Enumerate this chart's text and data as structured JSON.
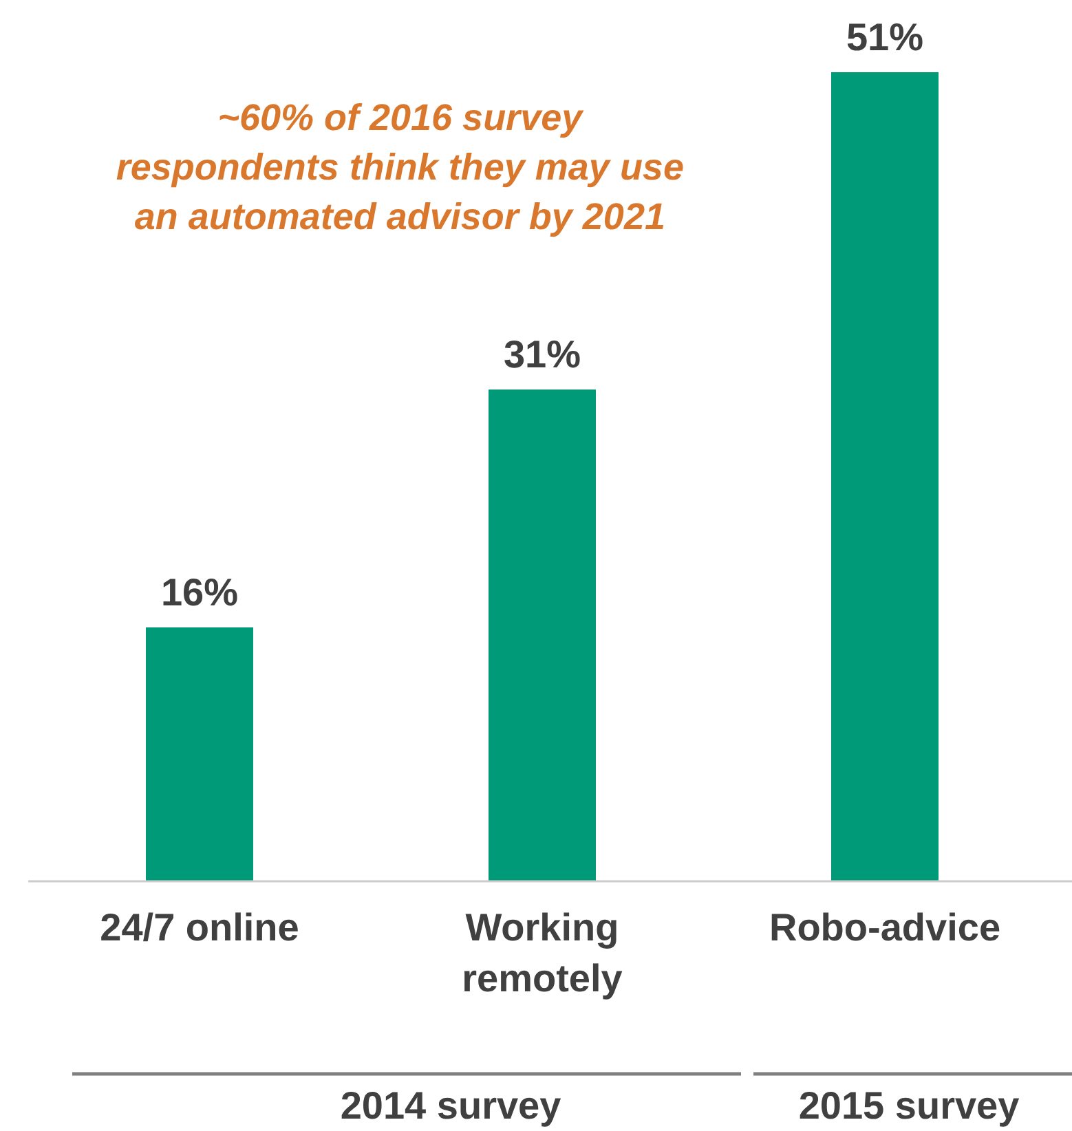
{
  "chart_data": {
    "type": "bar",
    "categories": [
      "24/7 online",
      "Working\nremotely",
      "Robo-advice"
    ],
    "values": [
      16,
      31,
      51
    ],
    "color": "#009a78",
    "data_labels": true,
    "value_labels": [
      "16%",
      "31%",
      "51%"
    ],
    "annotations": [
      "~60% of 2016 survey respondents think they may use an automated advisor by 2021",
      "2014 survey",
      "2015 survey"
    ]
  }
}
